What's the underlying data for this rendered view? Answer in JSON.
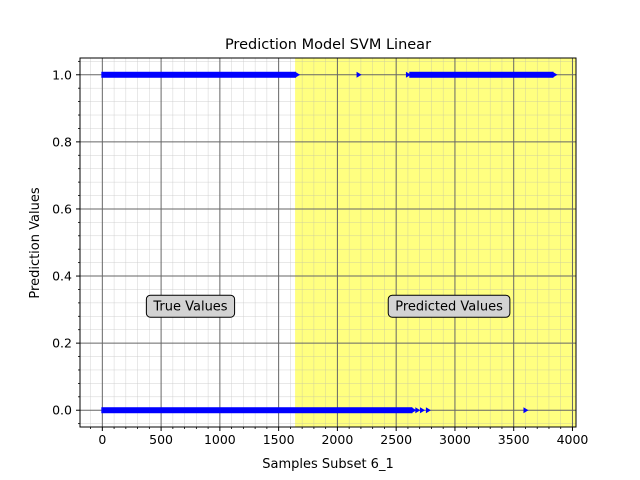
{
  "chart_data": {
    "type": "scatter",
    "title": "Prediction Model SVM Linear",
    "xlabel": "Samples Subset 6_1",
    "ylabel": "Prediction Values",
    "xlim": [
      -190,
      4030
    ],
    "ylim": [
      -0.05,
      1.05
    ],
    "x_ticks": [
      0,
      500,
      1000,
      1500,
      2000,
      2500,
      3000,
      3500,
      4000
    ],
    "y_ticks": [
      0.0,
      0.2,
      0.4,
      0.6,
      0.8,
      1.0
    ],
    "x_tick_labels": [
      "0",
      "500",
      "1000",
      "1500",
      "2000",
      "2500",
      "3000",
      "3500",
      "4000"
    ],
    "y_tick_labels": [
      "0.0",
      "0.2",
      "0.4",
      "0.6",
      "0.8",
      "1.0"
    ],
    "grid": true,
    "marker_color": "#0000ff",
    "highlight": {
      "x_start": 1640,
      "x_end": 4030,
      "color": "#ffff80"
    },
    "series": [
      {
        "segments": [
          {
            "x_start": 0,
            "x_end": 1640,
            "y": 1.0
          },
          {
            "x_start": 0,
            "x_end": 2630,
            "y": 0.0
          },
          {
            "x_start": 2620,
            "x_end": 3830,
            "y": 1.0
          }
        ],
        "points": [
          {
            "x": 2180,
            "y": 1.0
          },
          {
            "x": 2600,
            "y": 1.0
          },
          {
            "x": 2680,
            "y": 0.0
          },
          {
            "x": 2720,
            "y": 0.0
          },
          {
            "x": 2770,
            "y": 0.0
          },
          {
            "x": 3600,
            "y": 0.0
          }
        ]
      }
    ],
    "annotations": [
      {
        "text": "True Values",
        "x": 750,
        "y": 0.31
      },
      {
        "text": "Predicted Values",
        "x": 2950,
        "y": 0.31
      }
    ]
  }
}
